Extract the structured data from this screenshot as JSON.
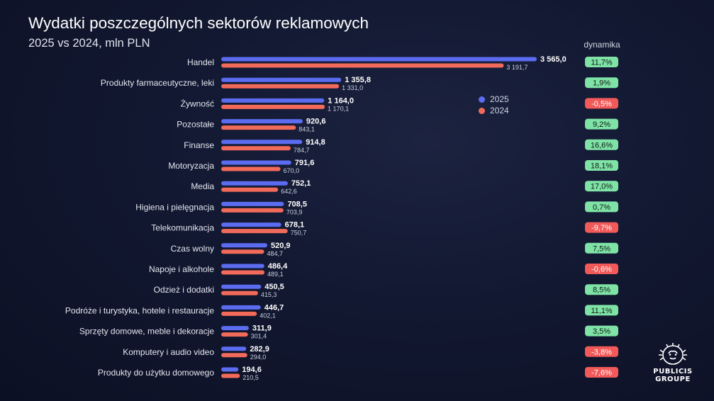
{
  "chart_data": {
    "type": "bar",
    "title": "Wydatki poszczególnych sektorów reklamowych",
    "subtitle": "2025 vs 2024, mln PLN",
    "categories": [
      "Handel",
      "Produkty farmaceutyczne, leki",
      "Żywność",
      "Pozostałe",
      "Finanse",
      "Motoryzacja",
      "Media",
      "Higiena i pielęgnacja",
      "Telekomunikacja",
      "Czas wolny",
      "Napoje i alkohole",
      "Odzież i dodatki",
      "Podróże i turystyka, hotele i restauracje",
      "Sprzęty domowe, meble i dekoracje",
      "Komputery i audio video",
      "Produkty do użytku domowego"
    ],
    "series": [
      {
        "name": "2025",
        "color": "#5b6cf0",
        "values": [
          3565.0,
          1355.8,
          1164.0,
          920.6,
          914.8,
          791.6,
          752.1,
          708.5,
          678.1,
          520.9,
          486.4,
          450.5,
          446.7,
          311.9,
          282.9,
          194.6
        ],
        "labels": [
          "3 565,0",
          "1 355,8",
          "1 164,0",
          "920,6",
          "914,8",
          "791,6",
          "752,1",
          "708,5",
          "678,1",
          "520,9",
          "486,4",
          "450,5",
          "446,7",
          "311,9",
          "282,9",
          "194,6"
        ]
      },
      {
        "name": "2024",
        "color": "#f26a5a",
        "values": [
          3191.7,
          1331.0,
          1170.1,
          843.1,
          784.7,
          670.0,
          642.6,
          703.9,
          750.7,
          484.7,
          489.1,
          415.3,
          402.1,
          301.4,
          294.0,
          210.5
        ],
        "labels": [
          "3 191,7",
          "1 331,0",
          "1 170,1",
          "843,1",
          "784,7",
          "670,0",
          "642,6",
          "703,9",
          "750,7",
          "484,7",
          "489,1",
          "415,3",
          "402,1",
          "301,4",
          "294,0",
          "210,5"
        ]
      }
    ],
    "dynamics": {
      "header": "dynamika",
      "labels": [
        "11,7%",
        "1,9%",
        "-0,5%",
        "9,2%",
        "16,6%",
        "18,1%",
        "17,0%",
        "0,7%",
        "-9,7%",
        "7,5%",
        "-0,6%",
        "8,5%",
        "11,1%",
        "3,5%",
        "-3,8%",
        "-7,6%"
      ],
      "values": [
        11.7,
        1.9,
        -0.5,
        9.2,
        16.6,
        18.1,
        17.0,
        0.7,
        -9.7,
        7.5,
        -0.6,
        8.5,
        11.1,
        3.5,
        -3.8,
        -7.6
      ],
      "positive_color": "#7fe3a6",
      "negative_color": "#f25a5a"
    },
    "legend": "top-right",
    "grid": false
  },
  "brand": {
    "line1": "PUBLICIS",
    "line2": "GROUPE"
  }
}
